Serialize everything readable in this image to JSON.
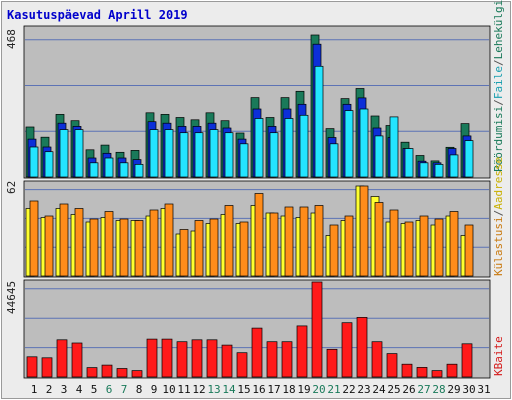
{
  "title": "Kasutuspäevad Aprill 2019",
  "colors": {
    "title": "#0000cc",
    "bg": "#ececec",
    "plot_bg": "#bdbdbd",
    "grid": "#5d73b5",
    "pages_back": "#1a7a5a",
    "pages": "#0c2fd8",
    "files": "#23e5ff",
    "visits_back": "#ff8c1a",
    "visits": "#ffff30",
    "kbytes": "#ff1a1a",
    "weekend_label": "#1a7a5a",
    "label_hits": "#1a7a5a",
    "label_files": "#1a9fb0",
    "label_visits": "#c97a10",
    "label_sites": "#c9b000",
    "label_kb": "#d41a1a"
  },
  "chart_data": [
    {
      "type": "bar",
      "name": "hits-pages-files",
      "ymax_label": "468",
      "ylim": [
        0,
        468
      ],
      "legend_parts": [
        "Pöördumisi",
        "/",
        "Faile",
        "/",
        "Lehekülgi"
      ],
      "categories": [
        "1",
        "2",
        "3",
        "4",
        "5",
        "6",
        "7",
        "8",
        "9",
        "10",
        "11",
        "12",
        "13",
        "14",
        "15",
        "16",
        "17",
        "18",
        "19",
        "20",
        "21",
        "22",
        "23",
        "24",
        "25",
        "26",
        "27",
        "28",
        "29",
        "30",
        "31"
      ],
      "series": [
        {
          "name": "Pöördumisi",
          "values": [
            158,
            126,
            198,
            178,
            86,
            101,
            78,
            84,
            203,
            198,
            188,
            181,
            203,
            178,
            139,
            251,
            188,
            251,
            271,
            449,
            153,
            248,
            280,
            193,
            163,
            110,
            68,
            51,
            94,
            169,
            0
          ]
        },
        {
          "name": "Lehekülgi",
          "values": [
            120,
            95,
            170,
            160,
            60,
            75,
            60,
            55,
            175,
            170,
            160,
            160,
            170,
            155,
            120,
            215,
            160,
            215,
            230,
            420,
            125,
            230,
            250,
            155,
            125,
            90,
            50,
            45,
            90,
            130,
            0
          ]
        },
        {
          "name": "Faile",
          "values": [
            95,
            80,
            150,
            150,
            45,
            60,
            45,
            40,
            150,
            150,
            140,
            140,
            150,
            140,
            105,
            185,
            140,
            185,
            195,
            350,
            105,
            210,
            215,
            130,
            190,
            90,
            45,
            40,
            70,
            115,
            0
          ]
        }
      ]
    },
    {
      "type": "bar",
      "name": "visits-sites",
      "ymax_label": "62",
      "ylim": [
        0,
        62
      ],
      "legend_parts": [
        "Külastusi",
        "/",
        "Aadresse"
      ],
      "categories": [
        "1",
        "2",
        "3",
        "4",
        "5",
        "6",
        "7",
        "8",
        "9",
        "10",
        "11",
        "12",
        "13",
        "14",
        "15",
        "16",
        "17",
        "18",
        "19",
        "20",
        "21",
        "22",
        "23",
        "24",
        "25",
        "26",
        "27",
        "28",
        "29",
        "30",
        "31"
      ],
      "series": [
        {
          "name": "Külastusi",
          "values": [
            50,
            40,
            48,
            45,
            38,
            43,
            38,
            37,
            44,
            48,
            31,
            37,
            38,
            47,
            36,
            55,
            42,
            46,
            46,
            47,
            34,
            40,
            60,
            49,
            44,
            36,
            40,
            38,
            43,
            34,
            0
          ]
        },
        {
          "name": "Aadresse",
          "values": [
            45,
            39,
            45,
            41,
            36,
            39,
            37,
            37,
            40,
            45,
            28,
            30,
            35,
            41,
            35,
            47,
            42,
            40,
            39,
            42,
            27,
            37,
            60,
            53,
            36,
            35,
            37,
            34,
            40,
            27,
            0
          ]
        }
      ]
    },
    {
      "type": "bar",
      "name": "kbytes",
      "ymax_label": "44645",
      "ylim": [
        0,
        44645
      ],
      "legend_parts": [
        "KBaite"
      ],
      "categories": [
        "1",
        "2",
        "3",
        "4",
        "5",
        "6",
        "7",
        "8",
        "9",
        "10",
        "11",
        "12",
        "13",
        "14",
        "15",
        "16",
        "17",
        "18",
        "19",
        "20",
        "21",
        "22",
        "23",
        "24",
        "25",
        "26",
        "27",
        "28",
        "29",
        "30",
        "31"
      ],
      "series": [
        {
          "name": "KBaite",
          "values": [
            9500,
            9000,
            17500,
            16000,
            4400,
            5600,
            4000,
            3000,
            17800,
            17800,
            16600,
            17500,
            17500,
            15000,
            11400,
            23000,
            16600,
            16600,
            24000,
            44645,
            13000,
            25500,
            28000,
            16600,
            11000,
            6000,
            4500,
            3000,
            6000,
            15600,
            0
          ]
        }
      ],
      "weekend_days": [
        6,
        7,
        13,
        14,
        20,
        21,
        27,
        28
      ]
    }
  ]
}
